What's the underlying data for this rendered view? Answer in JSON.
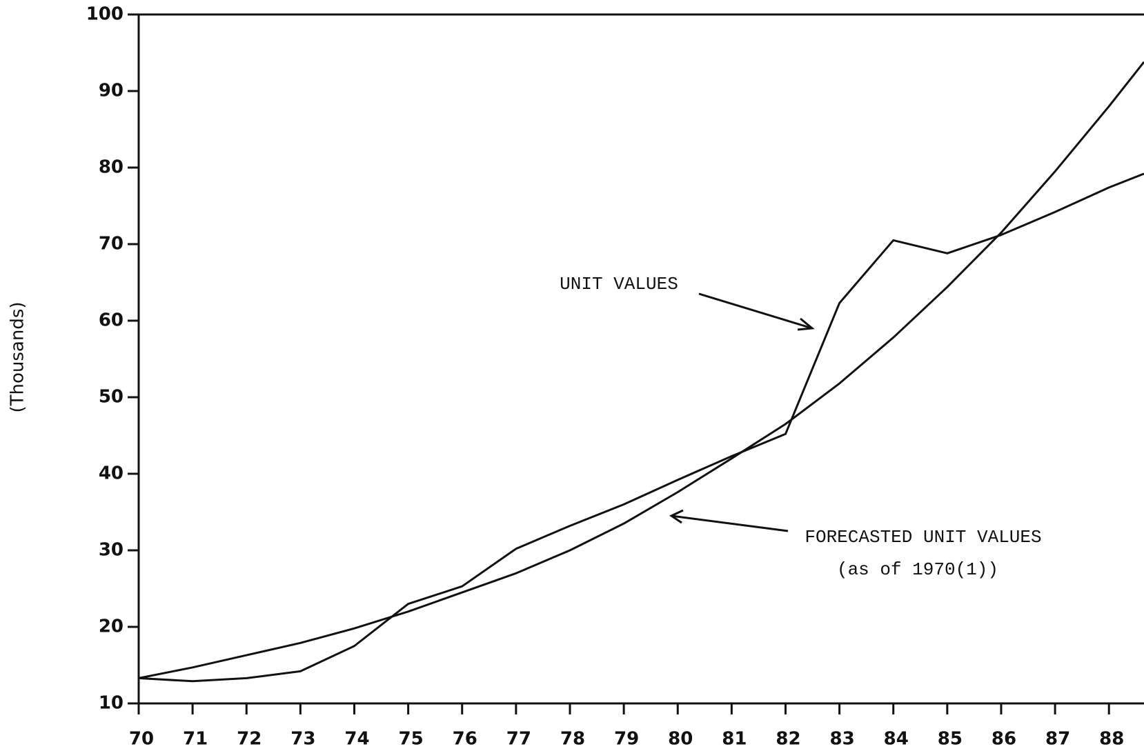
{
  "chart_data": {
    "type": "line",
    "y_label": "(Thousands)",
    "x": [
      70,
      71,
      72,
      73,
      74,
      75,
      76,
      77,
      78,
      79,
      80,
      81,
      82,
      83,
      84,
      85,
      86,
      87,
      88,
      88.65
    ],
    "series": [
      {
        "name": "UNIT VALUES",
        "color": "#111111",
        "values": [
          13.3,
          12.9,
          13.3,
          14.2,
          17.5,
          23.0,
          25.3,
          30.2,
          33.2,
          36.0,
          39.2,
          42.3,
          45.2,
          62.3,
          70.5,
          68.8,
          71.2,
          74.2,
          77.4,
          79.2
        ]
      },
      {
        "name": "FORECASTED UNIT VALUES",
        "color": "#111111",
        "values": [
          13.3,
          14.7,
          16.3,
          17.9,
          19.8,
          22.0,
          24.5,
          27.0,
          30.0,
          33.5,
          37.6,
          42.0,
          46.5,
          51.8,
          57.8,
          64.4,
          71.5,
          79.5,
          88.0,
          93.8
        ]
      }
    ],
    "annotations": [
      "UNIT VALUES",
      "FORECASTED UNIT VALUES",
      "(as of 1970(1))"
    ],
    "xlim": [
      70,
      88.65
    ],
    "xticks": [
      70,
      71,
      72,
      73,
      74,
      75,
      76,
      77,
      78,
      79,
      80,
      81,
      82,
      83,
      84,
      85,
      86,
      87,
      88
    ],
    "ylim": [
      10,
      100
    ],
    "yticks": [
      10,
      20,
      30,
      40,
      50,
      60,
      70,
      80,
      90,
      100
    ],
    "grid": false
  }
}
